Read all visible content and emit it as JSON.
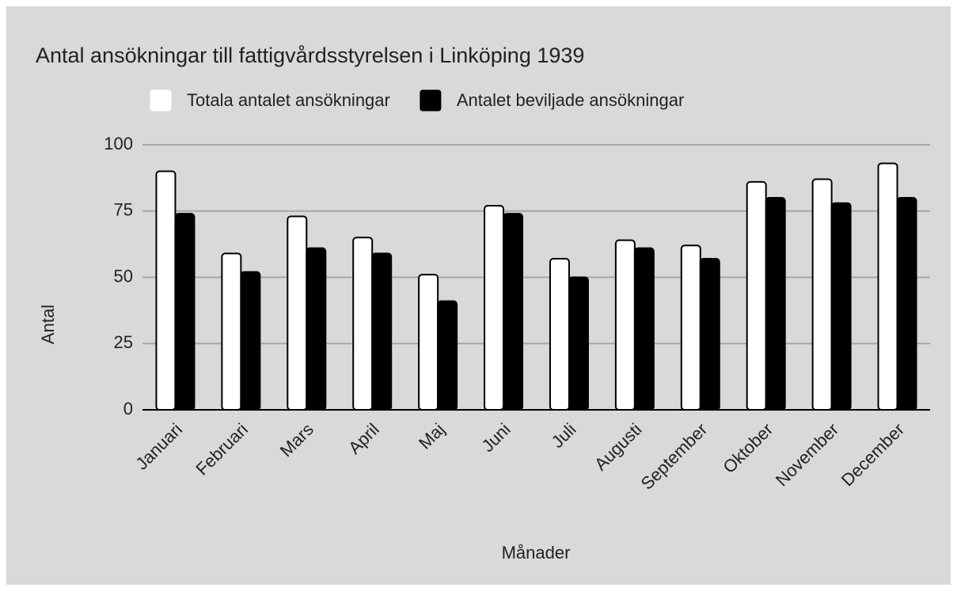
{
  "chart_data": {
    "type": "bar",
    "title": "Antal ansökningar till fattigvårdsstyrelsen i Linköping 1939",
    "x_label": "Månader",
    "y_label": "Antal",
    "categories": [
      "Januari",
      "Februari",
      "Mars",
      "April",
      "Maj",
      "Juni",
      "Juli",
      "Augusti",
      "September",
      "Oktober",
      "November",
      "December"
    ],
    "series": [
      {
        "name": "Totala antalet ansökningar",
        "color": "#ffffff",
        "values": [
          90,
          59,
          73,
          65,
          51,
          77,
          57,
          64,
          62,
          86,
          87,
          93
        ]
      },
      {
        "name": "Antalet beviljade ansökningar",
        "color": "#000000",
        "values": [
          74,
          52,
          61,
          59,
          41,
          74,
          50,
          61,
          57,
          80,
          78,
          80
        ]
      }
    ],
    "ylim": [
      0,
      100
    ],
    "yticks": [
      0,
      25,
      50,
      75,
      100
    ],
    "grid": true,
    "legend": "top"
  }
}
